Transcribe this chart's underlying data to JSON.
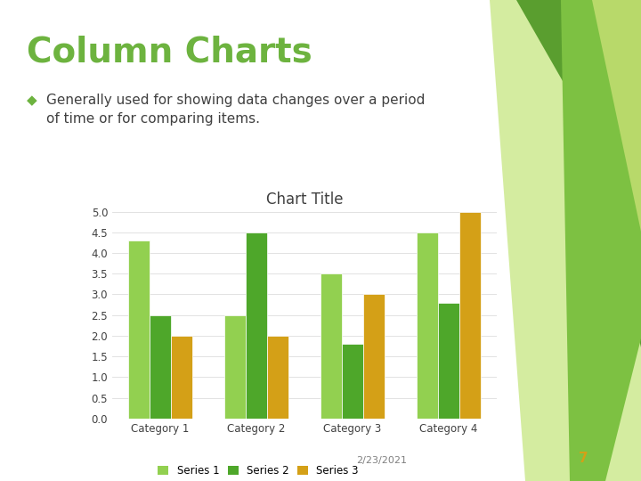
{
  "title": "Column Charts",
  "bullet_text": "Generally used for showing data changes over a period\nof time or for comparing items.",
  "chart_title": "Chart Title",
  "categories": [
    "Category 1",
    "Category 2",
    "Category 3",
    "Category 4"
  ],
  "series": {
    "Series 1": [
      4.3,
      2.5,
      3.5,
      4.5
    ],
    "Series 2": [
      2.5,
      4.5,
      1.8,
      2.8
    ],
    "Series 3": [
      2.0,
      2.0,
      3.0,
      5.0
    ]
  },
  "series_colors": {
    "Series 1": "#92D050",
    "Series 2": "#4EA72A",
    "Series 3": "#D4A017"
  },
  "ylim": [
    0,
    5
  ],
  "yticks": [
    0,
    0.5,
    1,
    1.5,
    2,
    2.5,
    3,
    3.5,
    4,
    4.5,
    5
  ],
  "bg_color": "#FFFFFF",
  "title_color": "#6DB33F",
  "bullet_color": "#404040",
  "chart_title_color": "#404040",
  "footer_date": "2/23/2021",
  "footer_page": "7",
  "footer_color": "#808080",
  "footer_page_color": "#D4A017",
  "deco_colors_dark": "#5A9E2F",
  "deco_colors_mid": "#7DC142",
  "deco_colors_light": "#B8D96A",
  "deco_colors_vlight": "#D4ECA0",
  "bar_width": 0.22
}
